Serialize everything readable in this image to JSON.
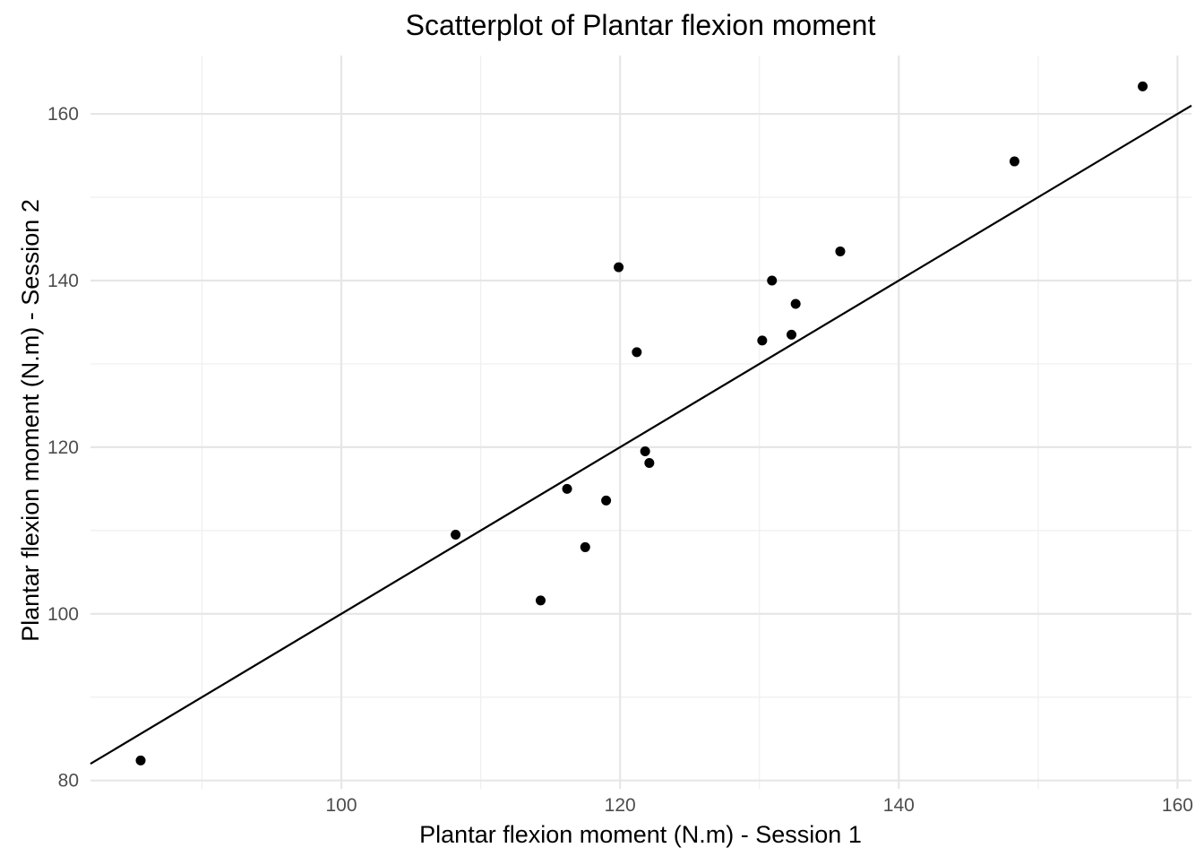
{
  "chart_data": {
    "type": "scatter",
    "title": "Scatterplot of Plantar flexion moment",
    "xlabel": "Plantar flexion moment (N.m) - Session 1",
    "ylabel": "Plantar flexion moment (N.m) - Session 2",
    "xlim": [
      82,
      161
    ],
    "ylim": [
      79,
      167
    ],
    "x_ticks": [
      100,
      120,
      140,
      160
    ],
    "y_ticks": [
      80,
      100,
      120,
      140,
      160
    ],
    "x_minor_ticks": [
      90,
      110,
      130,
      150
    ],
    "y_minor_ticks": [
      90,
      110,
      130,
      150
    ],
    "grid": true,
    "reference_line": {
      "slope": 1,
      "intercept": 0
    },
    "points": [
      {
        "x": 85.6,
        "y": 82.4
      },
      {
        "x": 108.2,
        "y": 109.5
      },
      {
        "x": 114.3,
        "y": 101.6
      },
      {
        "x": 116.2,
        "y": 115.0
      },
      {
        "x": 117.5,
        "y": 108.0
      },
      {
        "x": 119.0,
        "y": 113.6
      },
      {
        "x": 119.9,
        "y": 141.6
      },
      {
        "x": 121.2,
        "y": 131.4
      },
      {
        "x": 121.8,
        "y": 119.5
      },
      {
        "x": 122.1,
        "y": 118.1
      },
      {
        "x": 130.2,
        "y": 132.8
      },
      {
        "x": 130.9,
        "y": 140.0
      },
      {
        "x": 132.3,
        "y": 133.5
      },
      {
        "x": 132.6,
        "y": 137.2
      },
      {
        "x": 135.8,
        "y": 143.5
      },
      {
        "x": 148.3,
        "y": 154.3
      },
      {
        "x": 157.5,
        "y": 163.3
      }
    ]
  }
}
